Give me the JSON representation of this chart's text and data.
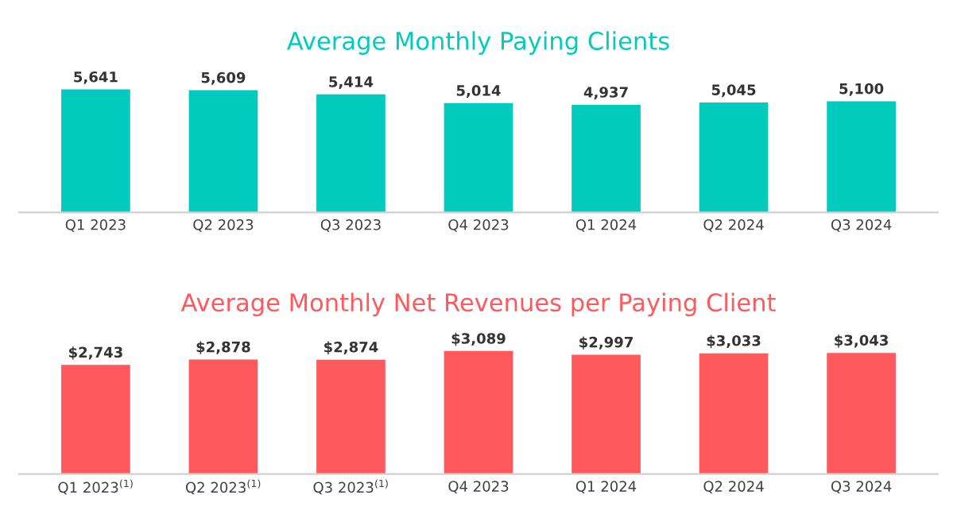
{
  "chart_data": [
    {
      "type": "bar",
      "title": "Average Monthly Paying Clients",
      "categories": [
        "Q1 2023",
        "Q2 2023",
        "Q3 2023",
        "Q4 2023",
        "Q1 2024",
        "Q2 2024",
        "Q3 2024"
      ],
      "values": [
        5641,
        5609,
        5414,
        5014,
        4937,
        5045,
        5100
      ],
      "color": "#00cbbd",
      "value_labels": [
        "5,641",
        "5,609",
        "5,414",
        "5,014",
        "4,937",
        "5,045",
        "5,100"
      ],
      "grid": false,
      "legend": false
    },
    {
      "type": "bar",
      "title": "Average Monthly Net Revenues per Paying Client",
      "categories": [
        "Q1 2023$^{(1)}$",
        "Q2 2023$^{(1)}$",
        "Q3 2023$^{(1)}$",
        "Q4 2023",
        "Q1 2024",
        "Q2 2024",
        "Q3 2024"
      ],
      "values": [
        2743,
        2878,
        2874,
        3089,
        2997,
        3033,
        3043
      ],
      "color": "#ff585d",
      "value_labels": [
        "$2,743",
        "$2,878",
        "$2,874",
        "$3,089",
        "$2,997",
        "$3,033",
        "$3,043"
      ],
      "grid": false,
      "legend": false
    }
  ]
}
